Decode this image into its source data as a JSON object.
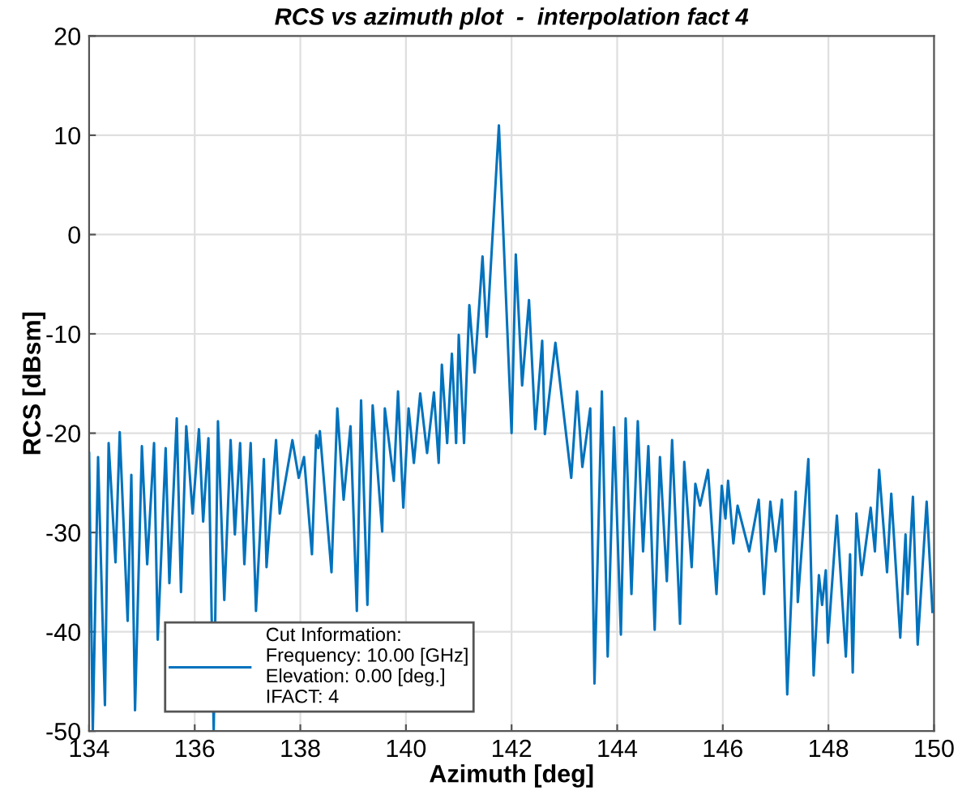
{
  "chart_data": {
    "type": "line",
    "title": "RCS vs azimuth plot  -  interpolation fact 4",
    "xlabel": "Azimuth [deg]",
    "ylabel": "RCS [dBsm]",
    "xlim": [
      134,
      150
    ],
    "xticks": [
      134,
      136,
      138,
      140,
      142,
      144,
      146,
      148,
      150
    ],
    "ylim": [
      -50,
      20
    ],
    "yticks": [
      -50,
      -40,
      -30,
      -20,
      -10,
      0,
      10,
      20
    ],
    "grid": true,
    "legend": "bottom left",
    "marker": "none",
    "line_style": "solid",
    "series": [
      {
        "name": "Cut Information:\nFrequency: 10.00 [GHz]\nElevation: 0.00 [deg.]\nIFACT: 4",
        "color": "#0072bd",
        "x": [
          134.0,
          134.07,
          134.17,
          134.3,
          134.37,
          134.5,
          134.58,
          134.73,
          134.8,
          134.87,
          135.0,
          135.1,
          135.23,
          135.3,
          135.45,
          135.52,
          135.66,
          135.74,
          135.84,
          135.96,
          136.08,
          136.16,
          136.26,
          136.36,
          136.44,
          136.56,
          136.68,
          136.76,
          136.86,
          136.94,
          137.06,
          137.16,
          137.31,
          137.36,
          137.54,
          137.61,
          137.85,
          137.97,
          138.07,
          138.22,
          138.3,
          138.34,
          138.37,
          138.59,
          138.7,
          138.82,
          138.95,
          139.07,
          139.15,
          139.27,
          139.37,
          139.55,
          139.6,
          139.77,
          139.85,
          139.95,
          140.05,
          140.15,
          140.27,
          140.4,
          140.53,
          140.62,
          140.68,
          140.78,
          140.87,
          140.95,
          141.0,
          141.1,
          141.2,
          141.3,
          141.45,
          141.53,
          141.76,
          142.0,
          142.08,
          142.2,
          142.33,
          142.45,
          142.58,
          142.63,
          142.83,
          142.92,
          143.13,
          143.24,
          143.34,
          143.49,
          143.57,
          143.71,
          143.82,
          143.94,
          144.07,
          144.16,
          144.27,
          144.39,
          144.49,
          144.59,
          144.71,
          144.81,
          144.94,
          145.04,
          145.19,
          145.27,
          145.41,
          145.48,
          145.57,
          145.72,
          145.88,
          145.98,
          146.05,
          146.1,
          146.2,
          146.28,
          146.5,
          146.68,
          146.78,
          146.9,
          147.0,
          147.12,
          147.22,
          147.38,
          147.42,
          147.62,
          147.72,
          147.82,
          147.88,
          147.95,
          147.99,
          148.16,
          148.33,
          148.41,
          148.46,
          148.53,
          148.63,
          148.8,
          148.88,
          148.96,
          149.11,
          149.19,
          149.36,
          149.46,
          149.5,
          149.6,
          149.69,
          149.86,
          149.97
        ],
        "values": [
          -22,
          -50,
          -22.4,
          -47.4,
          -21,
          -33,
          -19.9,
          -38.9,
          -24.2,
          -47.9,
          -21.3,
          -33.2,
          -21,
          -40.8,
          -21.5,
          -35.1,
          -18.5,
          -36,
          -19.3,
          -28.1,
          -19.6,
          -28.9,
          -20.5,
          -50,
          -18.8,
          -36.8,
          -20.7,
          -30.2,
          -21,
          -33.2,
          -21,
          -37.9,
          -22.6,
          -33.5,
          -20.7,
          -28.1,
          -20.7,
          -24.5,
          -22.4,
          -32.2,
          -20.2,
          -21.5,
          -19.8,
          -34,
          -17.5,
          -26.7,
          -19.3,
          -37.9,
          -16.7,
          -37.3,
          -17.2,
          -29.9,
          -17.5,
          -24.8,
          -15.8,
          -27.5,
          -17.5,
          -23,
          -16,
          -22,
          -15.9,
          -23,
          -13.1,
          -21,
          -12,
          -21,
          -10.1,
          -21,
          -7.1,
          -13.9,
          -2.2,
          -10.3,
          11,
          -20,
          -2,
          -15.2,
          -6.6,
          -19.6,
          -10.7,
          -20.1,
          -10.9,
          -15,
          -24.5,
          -15.8,
          -23.4,
          -17.5,
          -45.2,
          -15.8,
          -42.5,
          -19.4,
          -40.3,
          -18.5,
          -36.2,
          -18.8,
          -31.9,
          -21.3,
          -39.8,
          -22.4,
          -34.9,
          -20.7,
          -39.2,
          -22.9,
          -33.5,
          -25.1,
          -27.3,
          -23.7,
          -36.2,
          -25.3,
          -28.6,
          -24.8,
          -31.1,
          -27.3,
          -31.9,
          -26.7,
          -36.2,
          -26.9,
          -31.9,
          -26.7,
          -46.3,
          -25.9,
          -37,
          -22.6,
          -44.4,
          -34.3,
          -37.3,
          -33.8,
          -41.1,
          -28.3,
          -42.5,
          -32.2,
          -44.1,
          -28.1,
          -34.3,
          -27.5,
          -31.9,
          -23.7,
          -34,
          -26.1,
          -40.6,
          -30.2,
          -36.2,
          -26.4,
          -41.3,
          -26.9,
          -38
        ]
      }
    ]
  }
}
